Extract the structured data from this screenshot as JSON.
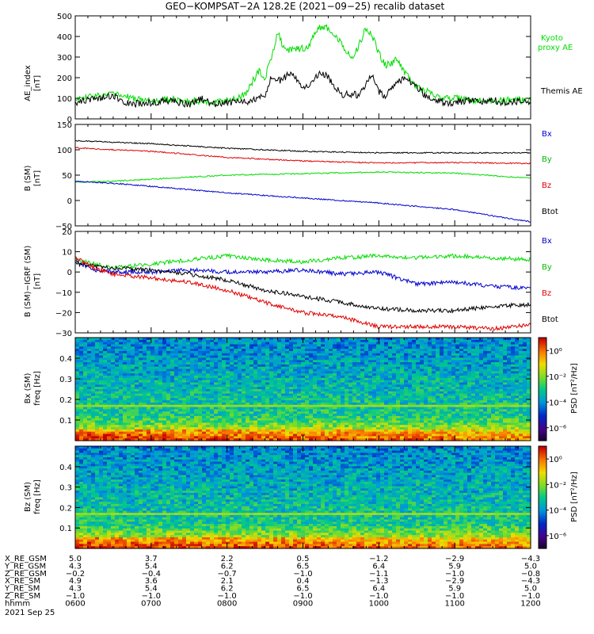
{
  "title": "GEO−KOMPSAT−2A 128.2E (2021−09−25) recalib dataset",
  "date_label": "2021 Sep 25",
  "colors": {
    "green": "#00dd00",
    "black": "#000000",
    "red": "#e00000",
    "blue": "#0000cc"
  },
  "panels": {
    "ae": {
      "ylabel": "AE_index",
      "yunit": "[nT]",
      "legend": [
        "Kyoto",
        "proxy AE",
        "Themis AE"
      ]
    },
    "bsm": {
      "ylabel": "B (SM)",
      "yunit": "[nT]",
      "legend": [
        "Bx",
        "By",
        "Bz",
        "Btot"
      ]
    },
    "bigrf": {
      "ylabel": "B (SM)−IGRF (SM)",
      "yunit": "[nT]",
      "legend": [
        "Bx",
        "By",
        "Bz",
        "Btot"
      ]
    },
    "specx": {
      "ylabel": "Bx (SM)",
      "yunit": "freq [Hz]",
      "cbar_label": "PSD [nT²/Hz]",
      "cbar_ticks": [
        "10⁰",
        "10⁻²",
        "10⁻⁴",
        "10⁻⁶"
      ]
    },
    "specz": {
      "ylabel": "Bz (SM)",
      "yunit": "freq [Hz]",
      "cbar_label": "PSD [nT²/Hz]",
      "cbar_ticks": [
        "10⁰",
        "10⁻²",
        "10⁻⁴",
        "10⁻⁶"
      ]
    }
  },
  "ephemeris": {
    "rows": [
      {
        "label": "X_RE_GSM",
        "values": [
          "5.0",
          "3.7",
          "2.2",
          "0.5",
          "−1.2",
          "−2.9",
          "−4.3"
        ]
      },
      {
        "label": "Y_RE_GSM",
        "values": [
          "4.3",
          "5.4",
          "6.2",
          "6.5",
          "6.4",
          "5.9",
          "5.0"
        ]
      },
      {
        "label": "Z_RE_GSM",
        "values": [
          "−0.2",
          "−0.4",
          "−0.7",
          "−1.0",
          "−1.1",
          "−1.0",
          "−0.8"
        ]
      },
      {
        "label": "X_RE_SM",
        "values": [
          "4.9",
          "3.6",
          "2.1",
          "0.4",
          "−1.3",
          "−2.9",
          "−4.3"
        ]
      },
      {
        "label": "Y_RE_SM",
        "values": [
          "4.3",
          "5.4",
          "6.2",
          "6.5",
          "6.4",
          "5.9",
          "5.0"
        ]
      },
      {
        "label": "Z_RE_SM",
        "values": [
          "−1.0",
          "−1.0",
          "−1.0",
          "−1.0",
          "−1.0",
          "−1.0",
          "−1.0"
        ]
      },
      {
        "label": "hhmm",
        "values": [
          "0600",
          "0700",
          "0800",
          "0900",
          "1000",
          "1100",
          "1200"
        ]
      }
    ]
  },
  "chart_data": [
    {
      "type": "line",
      "panel": "ae",
      "ylabel": "AE_index [nT]",
      "ylim": [
        0,
        500
      ],
      "yticks": [
        0,
        100,
        200,
        300,
        400,
        500
      ],
      "xlim": [
        "0600",
        "1200"
      ],
      "series": [
        {
          "name": "Kyoto proxy AE",
          "color": "green",
          "x": [
            "0600",
            "0615",
            "0630",
            "0645",
            "0700",
            "0715",
            "0730",
            "0740",
            "0750",
            "0800",
            "0815",
            "0820",
            "0825",
            "0830",
            "0835",
            "0840",
            "0845",
            "0850",
            "0855",
            "0900",
            "0905",
            "0910",
            "0915",
            "0920",
            "0925",
            "0930",
            "0935",
            "0940",
            "0945",
            "0950",
            "0955",
            "1000",
            "1005",
            "1010",
            "1015",
            "1020",
            "1030",
            "1040",
            "1045",
            "1050",
            "1100",
            "1110",
            "1120",
            "1130",
            "1140",
            "1150",
            "1200"
          ],
          "y": [
            95,
            110,
            120,
            100,
            85,
            95,
            85,
            90,
            80,
            85,
            120,
            180,
            230,
            200,
            300,
            420,
            340,
            330,
            340,
            340,
            360,
            420,
            450,
            440,
            400,
            370,
            330,
            300,
            370,
            440,
            400,
            320,
            260,
            270,
            290,
            230,
            150,
            130,
            110,
            100,
            100,
            90,
            90,
            85,
            90,
            90,
            85
          ]
        },
        {
          "name": "Themis AE",
          "color": "black",
          "x": [
            "0600",
            "0615",
            "0630",
            "0645",
            "0700",
            "0715",
            "0730",
            "0740",
            "0750",
            "0800",
            "0815",
            "0820",
            "0830",
            "0835",
            "0840",
            "0845",
            "0850",
            "0900",
            "0905",
            "0910",
            "0915",
            "0920",
            "0925",
            "0930",
            "0940",
            "0945",
            "0950",
            "0955",
            "1000",
            "1005",
            "1010",
            "1020",
            "1030",
            "1040",
            "1050",
            "1100",
            "1110",
            "1120",
            "1130",
            "1140",
            "1150",
            "1200"
          ],
          "y": [
            80,
            100,
            110,
            70,
            80,
            90,
            70,
            100,
            70,
            80,
            80,
            90,
            110,
            200,
            180,
            200,
            220,
            160,
            170,
            210,
            220,
            200,
            160,
            120,
            120,
            110,
            180,
            200,
            130,
            110,
            150,
            200,
            150,
            100,
            80,
            80,
            90,
            80,
            90,
            80,
            85,
            75
          ]
        }
      ]
    },
    {
      "type": "line",
      "panel": "bsm",
      "ylabel": "B (SM) [nT]",
      "ylim": [
        -50,
        150
      ],
      "yticks": [
        -50,
        0,
        50,
        100,
        150
      ],
      "xlim": [
        "0600",
        "1200"
      ],
      "series": [
        {
          "name": "Btot",
          "color": "black",
          "x": [
            "0600",
            "0630",
            "0700",
            "0800",
            "0900",
            "1000",
            "1100",
            "1200"
          ],
          "y": [
            118,
            115,
            112,
            103,
            97,
            94,
            94,
            94
          ]
        },
        {
          "name": "Bz",
          "color": "red",
          "x": [
            "0600",
            "0630",
            "0700",
            "0800",
            "0900",
            "1000",
            "1100",
            "1200"
          ],
          "y": [
            104,
            100,
            97,
            85,
            78,
            74,
            75,
            73
          ]
        },
        {
          "name": "By",
          "color": "green",
          "x": [
            "0600",
            "0630",
            "0700",
            "0800",
            "0900",
            "1000",
            "1100",
            "1200"
          ],
          "y": [
            36,
            38,
            42,
            50,
            53,
            56,
            54,
            44
          ]
        },
        {
          "name": "Bx",
          "color": "blue",
          "x": [
            "0600",
            "0630",
            "0700",
            "0800",
            "0900",
            "1000",
            "1100",
            "1200"
          ],
          "y": [
            38,
            34,
            28,
            15,
            5,
            -5,
            -18,
            -42
          ]
        }
      ]
    },
    {
      "type": "line",
      "panel": "bigrf",
      "ylabel": "B (SM)−IGRF (SM) [nT]",
      "ylim": [
        -30,
        20
      ],
      "yticks": [
        -30,
        -20,
        -10,
        0,
        10,
        20
      ],
      "xlim": [
        "0600",
        "1200"
      ],
      "series": [
        {
          "name": "By",
          "color": "green",
          "x": [
            "0600",
            "0615",
            "0630",
            "0700",
            "0730",
            "0800",
            "0830",
            "0900",
            "0930",
            "1000",
            "1030",
            "1100",
            "1130",
            "1200"
          ],
          "y": [
            6,
            4,
            2,
            4,
            6,
            8,
            6,
            5,
            7,
            8,
            7,
            8,
            7,
            6
          ]
        },
        {
          "name": "Bx",
          "color": "blue",
          "x": [
            "0600",
            "0615",
            "0630",
            "0700",
            "0730",
            "0800",
            "0830",
            "0900",
            "0930",
            "1000",
            "1030",
            "1100",
            "1130",
            "1200"
          ],
          "y": [
            5,
            1,
            0,
            0,
            1,
            0,
            0,
            1,
            -1,
            0,
            -6,
            -5,
            -7,
            -8
          ]
        },
        {
          "name": "Btot",
          "color": "black",
          "x": [
            "0600",
            "0615",
            "0630",
            "0700",
            "0730",
            "0800",
            "0830",
            "0900",
            "0930",
            "1000",
            "1030",
            "1100",
            "1130",
            "1200"
          ],
          "y": [
            4,
            3,
            2,
            1,
            -1,
            -4,
            -9,
            -12,
            -15,
            -18,
            -19,
            -19,
            -17,
            -16
          ]
        },
        {
          "name": "Bz",
          "color": "red",
          "x": [
            "0600",
            "0615",
            "0630",
            "0700",
            "0730",
            "0800",
            "0830",
            "0900",
            "0930",
            "1000",
            "1030",
            "1100",
            "1130",
            "1200"
          ],
          "y": [
            7,
            2,
            -1,
            -3,
            -5,
            -9,
            -15,
            -20,
            -22,
            -27,
            -27,
            -27,
            -28,
            -26
          ]
        }
      ]
    },
    {
      "type": "heatmap",
      "panel": "specx",
      "ylabel": "Bx (SM) freq [Hz]",
      "ylim": [
        0,
        0.5
      ],
      "yticks": [
        0.1,
        0.2,
        0.3,
        0.4
      ],
      "xlim": [
        "0600",
        "1200"
      ],
      "colorbar": {
        "label": "PSD [nT²/Hz]",
        "range_log10": [
          -7,
          1
        ],
        "ticks_log10": [
          0,
          -2,
          -4,
          -6
        ]
      },
      "features": {
        "line_freq_hz": 0.167,
        "strong_low_freq_max_hz": 0.05,
        "background_log10_high_freq": -3.5
      }
    },
    {
      "type": "heatmap",
      "panel": "specz",
      "ylabel": "Bz (SM) freq [Hz]",
      "ylim": [
        0,
        0.5
      ],
      "yticks": [
        0.1,
        0.2,
        0.3,
        0.4
      ],
      "xlim": [
        "0600",
        "1200"
      ],
      "colorbar": {
        "label": "PSD [nT²/Hz]",
        "range_log10": [
          -7,
          1
        ],
        "ticks_log10": [
          0,
          -2,
          -4,
          -6
        ]
      },
      "features": {
        "line_freq_hz": 0.167,
        "strong_low_freq_max_hz": 0.05,
        "background_log10_high_freq": -3.5
      }
    }
  ]
}
